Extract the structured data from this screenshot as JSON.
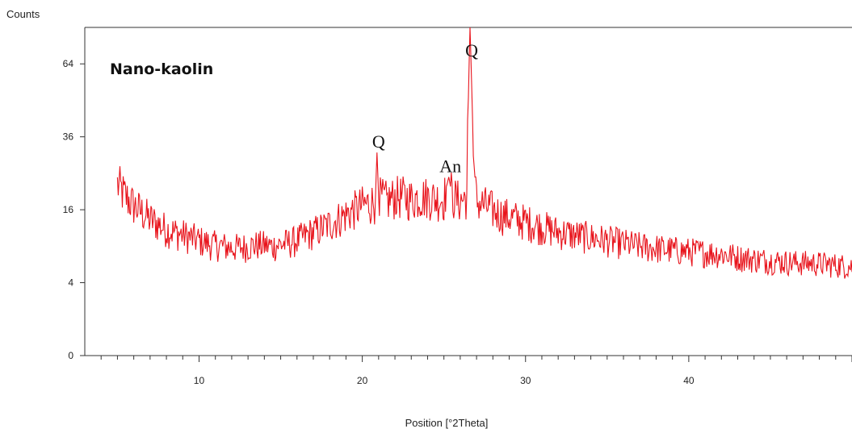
{
  "chart_data": {
    "type": "line",
    "ylabel": "Counts",
    "xlabel": "Position [°2Theta]",
    "sample_label": "Nano-kaolin",
    "x_ticks": [
      10,
      20,
      30,
      40
    ],
    "y_ticks": [
      0,
      4,
      16,
      36,
      64
    ],
    "xlim": [
      3,
      50
    ],
    "ylim": [
      0,
      81
    ],
    "y_scale": "sqrt",
    "grid": false,
    "line_color": "#e8141c",
    "series": [
      {
        "values": [
          [
            5.0,
            22
          ],
          [
            5.5,
            19
          ],
          [
            6.0,
            17
          ],
          [
            6.5,
            15.5
          ],
          [
            7.0,
            14
          ],
          [
            7.5,
            13
          ],
          [
            8.0,
            12
          ],
          [
            8.5,
            11.5
          ],
          [
            9.0,
            11
          ],
          [
            9.5,
            10.5
          ],
          [
            10.0,
            10
          ],
          [
            10.5,
            9.5
          ],
          [
            11.0,
            9.2
          ],
          [
            11.5,
            9.0
          ],
          [
            12.0,
            8.8
          ],
          [
            12.5,
            8.8
          ],
          [
            13.0,
            9.0
          ],
          [
            13.5,
            9.2
          ],
          [
            14.0,
            9.2
          ],
          [
            14.5,
            9.0
          ],
          [
            15.0,
            9.3
          ],
          [
            15.5,
            9.6
          ],
          [
            16.0,
            10
          ],
          [
            16.5,
            10.8
          ],
          [
            17.0,
            11.5
          ],
          [
            17.5,
            12.2
          ],
          [
            18.0,
            13
          ],
          [
            18.5,
            14
          ],
          [
            19.0,
            15
          ],
          [
            19.5,
            16
          ],
          [
            20.0,
            17
          ],
          [
            20.5,
            17.5
          ],
          [
            20.8,
            18
          ],
          [
            20.9,
            31
          ],
          [
            21.0,
            19
          ],
          [
            21.5,
            18
          ],
          [
            22.0,
            19
          ],
          [
            22.5,
            19
          ],
          [
            23.0,
            18.5
          ],
          [
            23.5,
            19
          ],
          [
            24.0,
            19
          ],
          [
            24.5,
            18.5
          ],
          [
            25.0,
            18.5
          ],
          [
            25.3,
            24
          ],
          [
            25.5,
            19
          ],
          [
            26.0,
            18
          ],
          [
            26.4,
            19
          ],
          [
            26.6,
            81
          ],
          [
            26.8,
            30
          ],
          [
            27.0,
            18
          ],
          [
            27.5,
            17
          ],
          [
            28.0,
            16
          ],
          [
            28.5,
            15
          ],
          [
            29.0,
            14.5
          ],
          [
            29.5,
            14
          ],
          [
            30.0,
            13.5
          ],
          [
            31.0,
            12.5
          ],
          [
            32.0,
            11.5
          ],
          [
            33.0,
            11
          ],
          [
            34.0,
            10.5
          ],
          [
            35.0,
            10
          ],
          [
            36.0,
            9.5
          ],
          [
            37.0,
            9
          ],
          [
            38.0,
            8.7
          ],
          [
            39.0,
            8.4
          ],
          [
            40.0,
            8.2
          ],
          [
            41.0,
            8.0
          ],
          [
            42.0,
            7.8
          ],
          [
            43.0,
            7.3
          ],
          [
            44.0,
            7.0
          ],
          [
            45.0,
            6.8
          ],
          [
            46.0,
            6.6
          ],
          [
            47.0,
            6.5
          ],
          [
            48.0,
            6.4
          ],
          [
            49.0,
            6.2
          ],
          [
            50.0,
            6.0
          ]
        ]
      }
    ],
    "annotations": [
      {
        "text": "Q",
        "x": 20.9,
        "y": 31
      },
      {
        "text": "An",
        "x": 25.3,
        "y": 24
      },
      {
        "text": "Q",
        "x": 26.6,
        "y": 81
      }
    ]
  }
}
